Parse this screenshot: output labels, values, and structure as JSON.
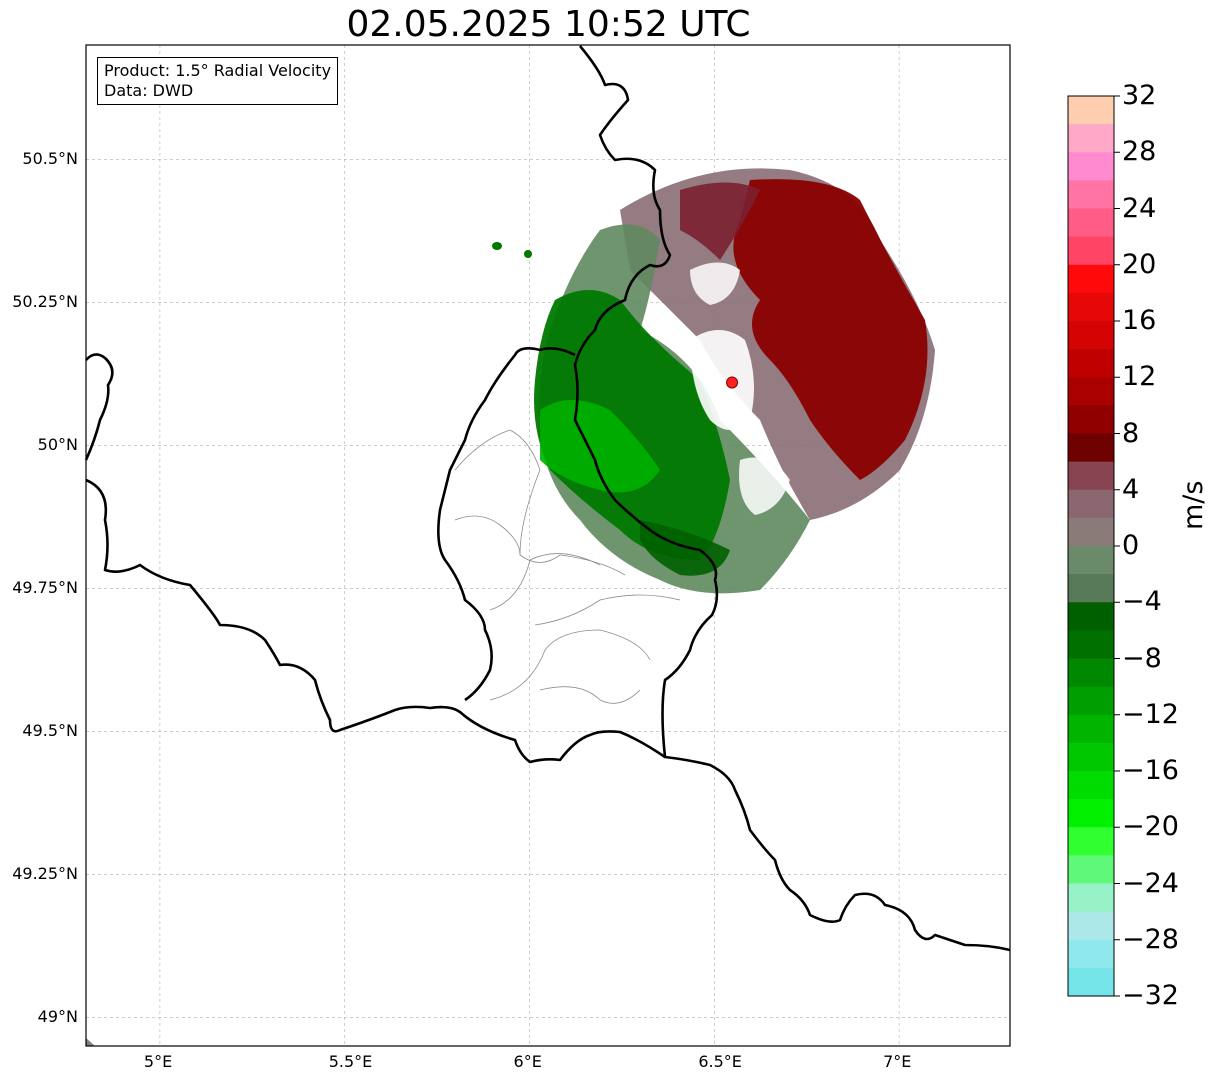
{
  "title": "02.05.2025 10:52 UTC",
  "info_box": {
    "product": "Product: 1.5° Radial Velocity",
    "data": "Data: DWD"
  },
  "map": {
    "lon_range": [
      4.8,
      7.3
    ],
    "lat_range": [
      48.95,
      50.7
    ],
    "lon_ticks": [
      "5°E",
      "5.5°E",
      "6°E",
      "6.5°E",
      "7°E"
    ],
    "lon_tick_values": [
      5.0,
      5.5,
      6.0,
      6.5,
      7.0
    ],
    "lat_ticks": [
      "50.5°N",
      "50.25°N",
      "50°N",
      "49.75°N",
      "49.5°N",
      "49.25°N",
      "49°N"
    ],
    "lat_tick_values": [
      50.5,
      50.25,
      50.0,
      49.75,
      49.5,
      49.25,
      49.0
    ],
    "gridlines": true,
    "radar_site": {
      "lon": 6.548,
      "lat": 50.11,
      "color": "#ff2020"
    }
  },
  "colorbar": {
    "unit": "m/s",
    "min": -32,
    "max": 32,
    "tick_labels": [
      "32",
      "28",
      "24",
      "20",
      "16",
      "12",
      "8",
      "4",
      "0",
      "−4",
      "−8",
      "−12",
      "−16",
      "−20",
      "−24",
      "−28",
      "−32"
    ],
    "colors_top_to_bottom": [
      "#ffcdb0",
      "#ffa8c8",
      "#ff8ad0",
      "#ff74a4",
      "#ff5c86",
      "#ff4466",
      "#ff0a0a",
      "#e60808",
      "#d40404",
      "#c00000",
      "#aa0000",
      "#900000",
      "#6e0000",
      "#884450",
      "#8a6670",
      "#8a7a78",
      "#6a8a6a",
      "#587a58",
      "#006000",
      "#007000",
      "#008800",
      "#009e00",
      "#00b400",
      "#00c800",
      "#00dc00",
      "#00f000",
      "#30ff30",
      "#60f878",
      "#98f2c8",
      "#ade8e8",
      "#8ee8ec",
      "#74e4e8"
    ]
  }
}
